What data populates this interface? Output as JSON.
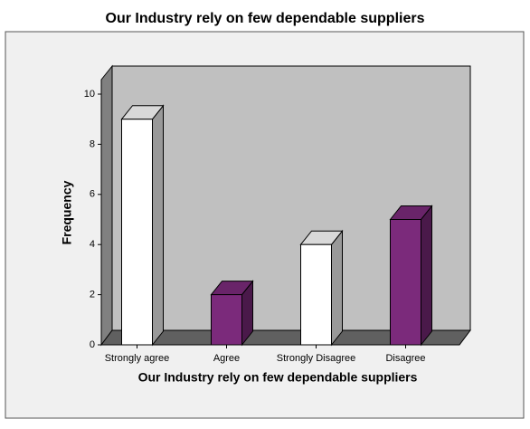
{
  "chart_data": {
    "type": "bar3d",
    "title": "Our Industry rely on few dependable suppliers",
    "x_label": "Our Industry rely on few dependable suppliers",
    "y_label": "Frequency",
    "categories": [
      "Strongly agree",
      "Agree",
      "Strongly Disagree",
      "Disagree"
    ],
    "values": [
      9,
      2,
      4,
      5
    ],
    "colors": [
      "#ffffff",
      "#7b2a7b",
      "#ffffff",
      "#7b2a7b"
    ],
    "ylim": [
      0,
      10
    ],
    "yticks": [
      0,
      2,
      4,
      6,
      8,
      10
    ]
  }
}
